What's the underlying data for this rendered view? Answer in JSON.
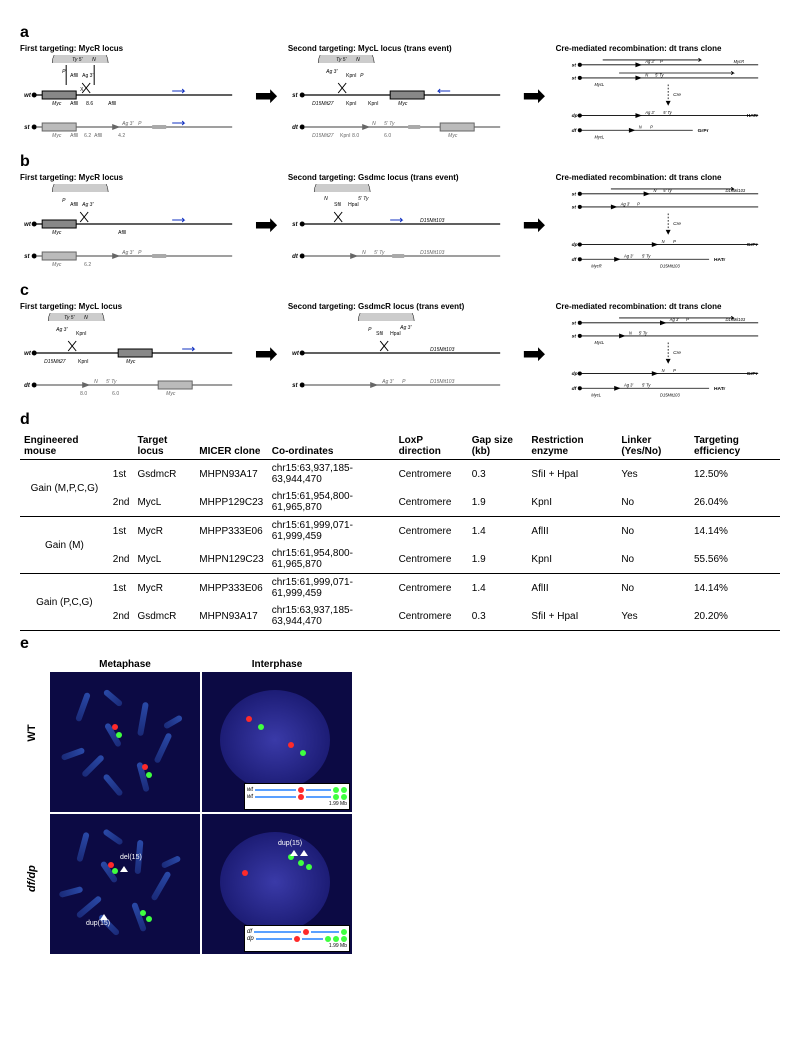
{
  "labels": {
    "a": "a",
    "b": "b",
    "c": "c",
    "d": "d",
    "e": "e"
  },
  "panelA": {
    "step1_title": "First targeting: MycR locus",
    "step2_title": "Second targeting: MycL locus (trans event)",
    "step3_title": "Cre-mediated recombination: dt trans clone",
    "wt": "wt",
    "st": "st",
    "dt": "dt",
    "dp": "dp",
    "df": "df",
    "Myc": "Myc",
    "sizes": [
      "8.6",
      "6.2",
      "4.2",
      "8.0",
      "6.0",
      "6.2"
    ],
    "markers": [
      "Aflll",
      "AflI",
      "KpnI",
      "Ag 3'",
      "Ty 5'",
      "5' Ty",
      "P",
      "N"
    ],
    "D15Mit27": "D15Mit27",
    "Cre": "Cre",
    "HATr": "HATr",
    "GrPr": "GrPr",
    "MycR": "MycR",
    "MycL": "MycL"
  },
  "panelB": {
    "step1_title": "First targeting: MycR locus",
    "step2_title": "Second targeting: Gsdmc locus (trans event)",
    "step3_title": "Cre-mediated recombination: dt trans clone",
    "D15Mit103": "D15Mit103",
    "HpaI": "HpaI",
    "Sfi": "Sfil"
  },
  "panelC": {
    "step1_title": "First targeting: MycL locus",
    "step2_title": "Second targeting: GsdmcR locus (trans event)",
    "step3_title": "Cre-mediated recombination: dt trans clone"
  },
  "tableD": {
    "headers": [
      "Engineered mouse",
      "",
      "Target locus",
      "MICER clone",
      "Co-ordinates",
      "LoxP direction",
      "Gap size (kb)",
      "Restriction enzyme",
      "Linker (Yes/No)",
      "Targeting efficiency"
    ],
    "groups": [
      {
        "label": "Gain (M,P,C,G)",
        "rows": [
          {
            "ord": "1st",
            "target": "GsdmcR",
            "micer": "MHPN93A17",
            "coord": "chr15:63,937,185-63,944,470",
            "loxp": "Centromere",
            "gap": "0.3",
            "enz": "SfiI + HpaI",
            "linker": "Yes",
            "eff": "12.50%"
          },
          {
            "ord": "2nd",
            "target": "MycL",
            "micer": "MHPP129C23",
            "coord": "chr15:61,954,800-61,965,870",
            "loxp": "Centromere",
            "gap": "1.9",
            "enz": "KpnI",
            "linker": "No",
            "eff": "26.04%"
          }
        ]
      },
      {
        "label": "Gain (M)",
        "rows": [
          {
            "ord": "1st",
            "target": "MycR",
            "micer": "MHPP333E06",
            "coord": "chr15:61,999,071-61,999,459",
            "loxp": "Centromere",
            "gap": "1.4",
            "enz": "AflII",
            "linker": "No",
            "eff": "14.14%"
          },
          {
            "ord": "2nd",
            "target": "MycL",
            "micer": "MHPN129C23",
            "coord": "chr15:61,954,800-61,965,870",
            "loxp": "Centromere",
            "gap": "1.9",
            "enz": "KpnI",
            "linker": "No",
            "eff": "55.56%"
          }
        ]
      },
      {
        "label": "Gain (P,C,G)",
        "rows": [
          {
            "ord": "1st",
            "target": "MycR",
            "micer": "MHPP333E06",
            "coord": "chr15:61,999,071-61,999,459",
            "loxp": "Centromere",
            "gap": "1.4",
            "enz": "AflII",
            "linker": "No",
            "eff": "14.14%"
          },
          {
            "ord": "2nd",
            "target": "GsdmcR",
            "micer": "MHPN93A17",
            "coord": "chr15:63,937,185-63,944,470",
            "loxp": "Centromere",
            "gap": "0.3",
            "enz": "SfiI + HpaI",
            "linker": "Yes",
            "eff": "20.20%"
          }
        ]
      }
    ]
  },
  "panelE": {
    "col1": "Metaphase",
    "col2": "Interphase",
    "row1": "WT",
    "row2": "df/dp",
    "del15": "del(15)",
    "dup15": "dup(15)",
    "wt": "wt",
    "df": "df",
    "dp": "dp",
    "scale": "1.99 Mb",
    "colors": {
      "bg": "#0c0a44",
      "chrom": "#2a4aa8",
      "red": "#ff2a2a",
      "green": "#3fff3f",
      "line": "#5aa0ff"
    }
  }
}
